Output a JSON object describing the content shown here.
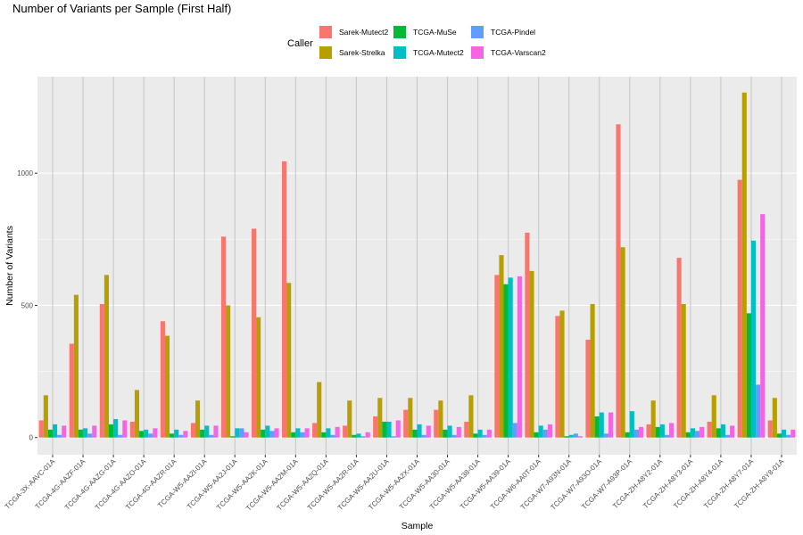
{
  "chart_data": {
    "type": "bar",
    "title": "Number of Variants per Sample (First Half)",
    "xlabel": "Sample",
    "ylabel": "Number of Variants",
    "ylim": [
      -65,
      1365
    ],
    "yticks": [
      0,
      500,
      1000
    ],
    "grid": true,
    "legend_title": "Caller",
    "legend_position": "top",
    "categories": [
      "TCGA-3X-AAVC-01A",
      "TCGA-4G-AAZF-01A",
      "TCGA-4G-AAZG-01A",
      "TCGA-4G-AAZO-01A",
      "TCGA-4G-AAZR-01A",
      "TCGA-W5-AA2I-01A",
      "TCGA-W5-AA2J-01A",
      "TCGA-W5-AA2K-01A",
      "TCGA-W5-AA2M-01A",
      "TCGA-W5-AA2Q-01A",
      "TCGA-W5-AA2R-01A",
      "TCGA-W5-AA2U-01A",
      "TCGA-W5-AA2X-01A",
      "TCGA-W5-AA30-01A",
      "TCGA-W5-AA38-01A",
      "TCGA-W5-AA39-01A",
      "TCGA-W6-AA0T-01A",
      "TCGA-W7-A93N-01A",
      "TCGA-W7-A93O-01A",
      "TCGA-W7-A93P-01A",
      "TCGA-ZH-A8Y2-01A",
      "TCGA-ZH-A8Y3-01A",
      "TCGA-ZH-A8Y4-01A",
      "TCGA-ZH-A8Y7-01A",
      "TCGA-ZH-A8Y8-01A"
    ],
    "series": [
      {
        "name": "Sarek-Mutect2",
        "color": "#F8766D",
        "values": [
          65,
          355,
          505,
          60,
          440,
          55,
          760,
          790,
          1045,
          55,
          45,
          80,
          105,
          105,
          60,
          615,
          775,
          460,
          370,
          1185,
          50,
          680,
          60,
          975,
          65
        ]
      },
      {
        "name": "Sarek-Strelka",
        "color": "#B79F00",
        "values": [
          160,
          540,
          615,
          180,
          385,
          140,
          500,
          455,
          585,
          210,
          140,
          150,
          150,
          140,
          160,
          690,
          630,
          480,
          505,
          720,
          140,
          505,
          160,
          1305,
          150
        ]
      },
      {
        "name": "TCGA-MuSe",
        "color": "#00BA38",
        "values": [
          30,
          30,
          50,
          25,
          15,
          30,
          5,
          30,
          20,
          20,
          10,
          60,
          30,
          30,
          15,
          580,
          20,
          5,
          80,
          20,
          40,
          20,
          35,
          470,
          15
        ]
      },
      {
        "name": "TCGA-Mutect2",
        "color": "#00BFC4",
        "values": [
          50,
          35,
          70,
          30,
          30,
          45,
          35,
          45,
          35,
          35,
          15,
          60,
          50,
          45,
          30,
          605,
          45,
          10,
          95,
          100,
          50,
          35,
          50,
          745,
          30
        ]
      },
      {
        "name": "TCGA-Pindel",
        "color": "#619CFF",
        "values": [
          10,
          15,
          10,
          15,
          10,
          10,
          35,
          25,
          20,
          10,
          5,
          5,
          10,
          10,
          10,
          55,
          30,
          15,
          15,
          30,
          10,
          25,
          10,
          200,
          10
        ]
      },
      {
        "name": "TCGA-Varscan2",
        "color": "#F564E3",
        "values": [
          45,
          45,
          65,
          35,
          25,
          45,
          20,
          35,
          35,
          40,
          20,
          65,
          45,
          40,
          30,
          610,
          50,
          5,
          95,
          40,
          55,
          40,
          45,
          845,
          30
        ]
      }
    ]
  }
}
